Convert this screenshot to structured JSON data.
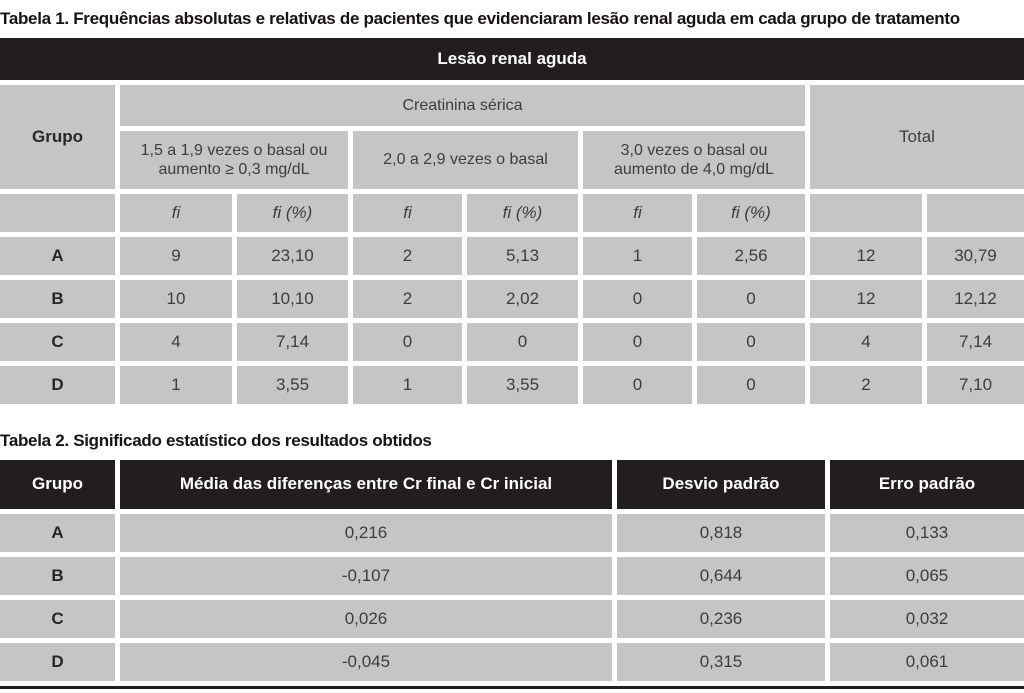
{
  "colors": {
    "header_black": "#221e1f",
    "cell_gray": "#c5c5c7",
    "text_dark": "#3d3d3f",
    "white": "#ffffff"
  },
  "table1": {
    "caption": "Tabela 1. Frequências absolutas e relativas de pacientes que evidenciaram lesão renal aguda em cada grupo de tratamento",
    "banner": "Lesão renal aguda",
    "header": {
      "grupo": "Grupo",
      "creatinina": "Creatinina sérica",
      "total": "Total",
      "subheaders": [
        "1,5 a 1,9 vezes o basal ou aumento ≥ 0,3 mg/dL",
        "2,0 a 2,9 vezes o basal",
        "3,0 vezes o basal ou aumento de 4,0 mg/dL"
      ],
      "fi_label": "fi",
      "fi_pct_label": "fi (%)"
    },
    "rows": [
      {
        "group": "A",
        "values": [
          "9",
          "23,10",
          "2",
          "5,13",
          "1",
          "2,56",
          "12",
          "30,79"
        ]
      },
      {
        "group": "B",
        "values": [
          "10",
          "10,10",
          "2",
          "2,02",
          "0",
          "0",
          "12",
          "12,12"
        ]
      },
      {
        "group": "C",
        "values": [
          "4",
          "7,14",
          "0",
          "0",
          "0",
          "0",
          "4",
          "7,14"
        ]
      },
      {
        "group": "D",
        "values": [
          "1",
          "3,55",
          "1",
          "3,55",
          "0",
          "0",
          "2",
          "7,10"
        ]
      }
    ]
  },
  "table2": {
    "caption": "Tabela 2. Significado estatístico dos resultados obtidos",
    "headers": [
      "Grupo",
      "Média das diferenças entre Cr final e Cr inicial",
      "Desvio padrão",
      "Erro padrão"
    ],
    "rows": [
      {
        "group": "A",
        "values": [
          "0,216",
          "0,818",
          "0,133"
        ]
      },
      {
        "group": "B",
        "values": [
          "-0,107",
          "0,644",
          "0,065"
        ]
      },
      {
        "group": "C",
        "values": [
          "0,026",
          "0,236",
          "0,032"
        ]
      },
      {
        "group": "D",
        "values": [
          "-0,045",
          "0,315",
          "0,061"
        ]
      }
    ]
  }
}
